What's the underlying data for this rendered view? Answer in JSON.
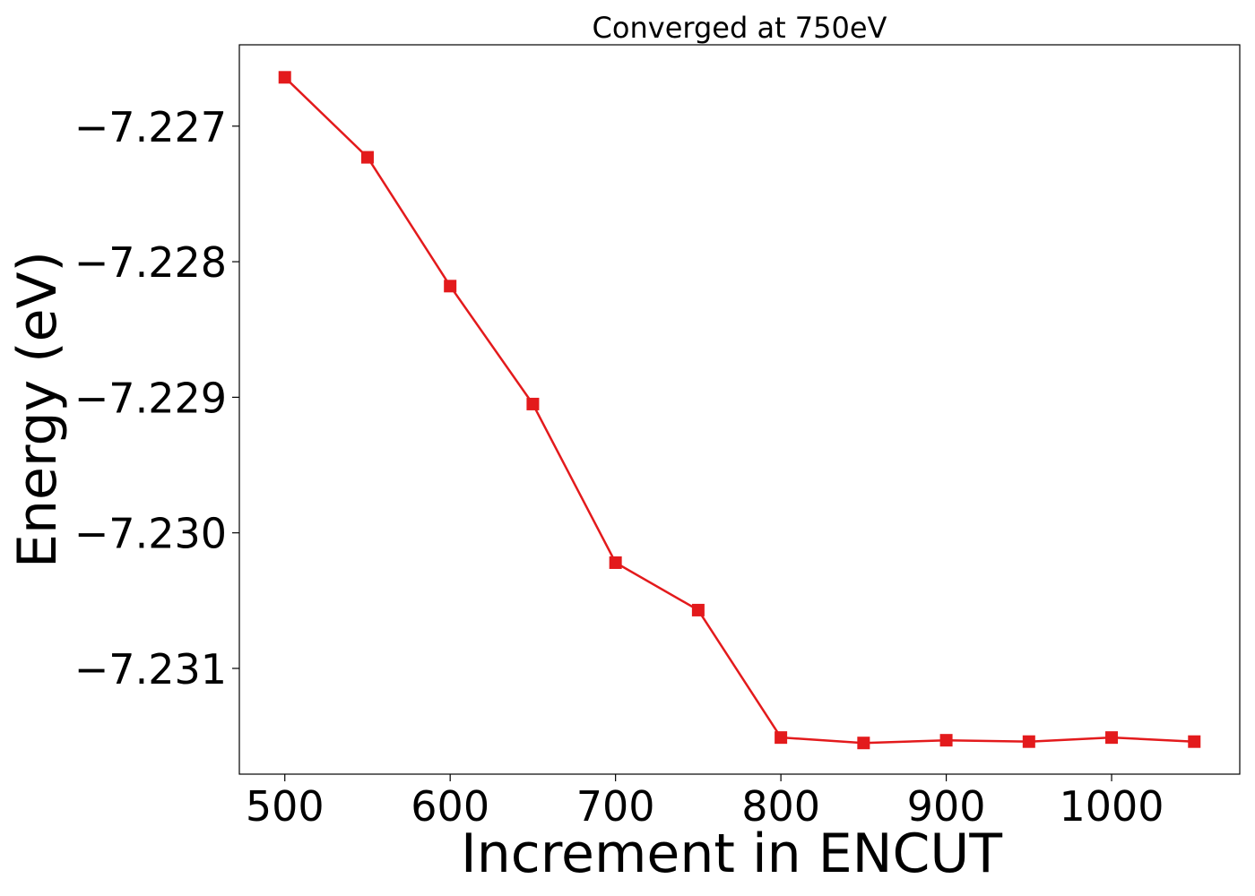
{
  "chart_data": {
    "type": "line",
    "title": "Converged at 750eV",
    "xlabel": "Increment in ENCUT",
    "ylabel": "Energy (eV)",
    "x": [
      500,
      550,
      600,
      650,
      700,
      750,
      800,
      850,
      900,
      950,
      1000,
      1050
    ],
    "series": [
      {
        "values": [
          -7.22664,
          -7.22723,
          -7.22818,
          -7.22905,
          -7.23022,
          -7.23057,
          -7.23151,
          -7.23155,
          -7.23153,
          -7.23154,
          -7.23151,
          -7.23154
        ],
        "color": "#e31a1c",
        "marker": "square"
      }
    ],
    "xlim": [
      472.5,
      1077.5
    ],
    "ylim": [
      -7.23178,
      -7.2264
    ],
    "xticks": [
      500,
      600,
      700,
      800,
      900,
      1000
    ],
    "yticks": [
      -7.227,
      -7.228,
      -7.229,
      -7.23,
      -7.231
    ],
    "xtick_labels": [
      "500",
      "600",
      "700",
      "800",
      "900",
      "1000"
    ],
    "ytick_labels": [
      "−7.227",
      "−7.228",
      "−7.229",
      "−7.230",
      "−7.231"
    ],
    "grid": false,
    "legend": "none"
  }
}
